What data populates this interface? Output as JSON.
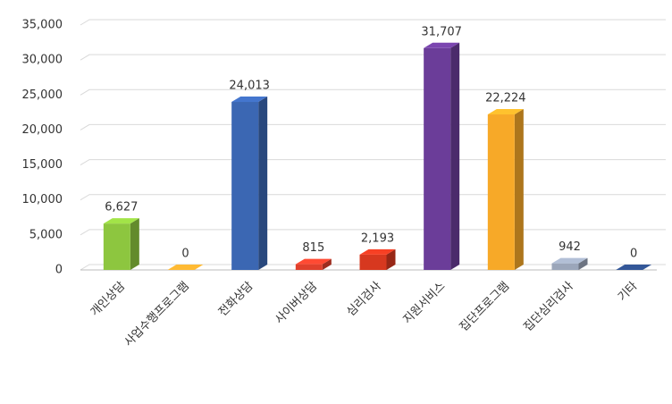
{
  "chart_data": {
    "type": "bar3d",
    "categories": [
      "개인상담",
      "사업수행프로그램",
      "전화상담",
      "사이버상담",
      "심리검사",
      "지원서비스",
      "집단프로그램",
      "집단심리검사",
      "기타"
    ],
    "values": [
      6627,
      0,
      24013,
      815,
      2193,
      31707,
      22224,
      942,
      0
    ],
    "value_labels": [
      "6,627",
      "0",
      "24,013",
      "815",
      "2,193",
      "31,707",
      "22,224",
      "942",
      "0"
    ],
    "colors": [
      "#8dc63f",
      "#e8a22c",
      "#3b67b3",
      "#e0402c",
      "#d7381f",
      "#6b3d99",
      "#f7a928",
      "#9ba6ba",
      "#2c4c84"
    ],
    "ylim": [
      0,
      35000
    ],
    "yticks": [
      0,
      {
        "value": 5000,
        "label": "5,000"
      },
      {
        "value": 10000,
        "label": "10,000"
      },
      {
        "value": 15000,
        "label": "15,000"
      },
      {
        "value": 20000,
        "label": "20,000"
      },
      {
        "value": 25000,
        "label": "25,000"
      },
      {
        "value": 30000,
        "label": "30,000"
      },
      {
        "value": 35000,
        "label": "35,000"
      }
    ],
    "grid": true
  }
}
